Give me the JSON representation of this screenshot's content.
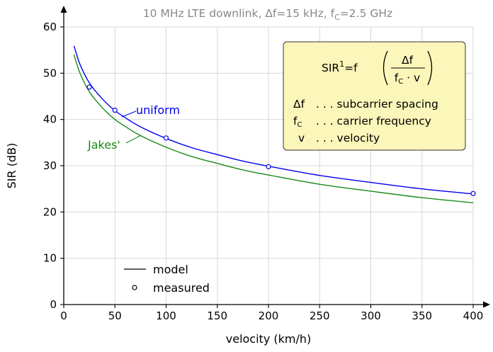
{
  "chart_data": {
    "type": "line",
    "title": "10 MHz LTE downlink, Δf=15 kHz, fC=2.5 GHz",
    "xlabel": "velocity (km/h)",
    "ylabel": "SIR (dB)",
    "xlim": [
      0,
      400
    ],
    "ylim": [
      0,
      60
    ],
    "xticks": [
      0,
      50,
      100,
      150,
      200,
      250,
      300,
      350,
      400
    ],
    "yticks": [
      0,
      10,
      20,
      30,
      40,
      50,
      60
    ],
    "grid": true,
    "series": [
      {
        "name": "uniform",
        "color": "#0000ee",
        "kind": "model",
        "x": [
          10,
          15,
          20,
          25,
          30,
          40,
          50,
          60,
          75,
          100,
          125,
          150,
          175,
          200,
          250,
          300,
          350,
          400
        ],
        "y": [
          55.9,
          52.4,
          49.9,
          47.9,
          46.4,
          43.9,
          41.9,
          40.4,
          38.4,
          35.9,
          33.9,
          32.4,
          31.0,
          29.9,
          27.9,
          26.4,
          25.0,
          23.9
        ]
      },
      {
        "name": "Jakes'",
        "color": "#1a8a1a",
        "kind": "model",
        "x": [
          10,
          15,
          20,
          25,
          30,
          40,
          50,
          60,
          75,
          100,
          125,
          150,
          175,
          200,
          250,
          300,
          350,
          400
        ],
        "y": [
          54.0,
          50.5,
          48.0,
          46.0,
          44.5,
          42.0,
          40.0,
          38.5,
          36.5,
          34.0,
          32.0,
          30.5,
          29.1,
          28.0,
          26.0,
          24.5,
          23.1,
          22.0
        ]
      },
      {
        "name": "measured",
        "color": "#0000ee",
        "kind": "measured",
        "x": [
          25,
          50,
          100,
          200,
          400
        ],
        "y": [
          47,
          42,
          36,
          29.8,
          24
        ]
      }
    ],
    "annotations": {
      "uniform_label": "uniform",
      "jakes_label": "Jakes'"
    },
    "legend": {
      "placement": "bottom-left",
      "model_label": "model",
      "measured_label": "measured"
    },
    "info_box": {
      "formula_lhs": "SIR",
      "formula_sup": "1",
      "formula_eq": "=f",
      "formula_num": "Δf",
      "formula_den_f": "f",
      "formula_den_sub": "C",
      "formula_den_rest": " · v",
      "defs": [
        {
          "sym": "Δf",
          "sub": "",
          "desc": ". . .  subcarrier spacing"
        },
        {
          "sym": "f",
          "sub": "C",
          "desc": ". . .  carrier frequency"
        },
        {
          "sym": "v",
          "sub": "",
          "desc": ". . .  velocity"
        }
      ],
      "background": "#fbf6b9",
      "border": "#333333"
    }
  }
}
